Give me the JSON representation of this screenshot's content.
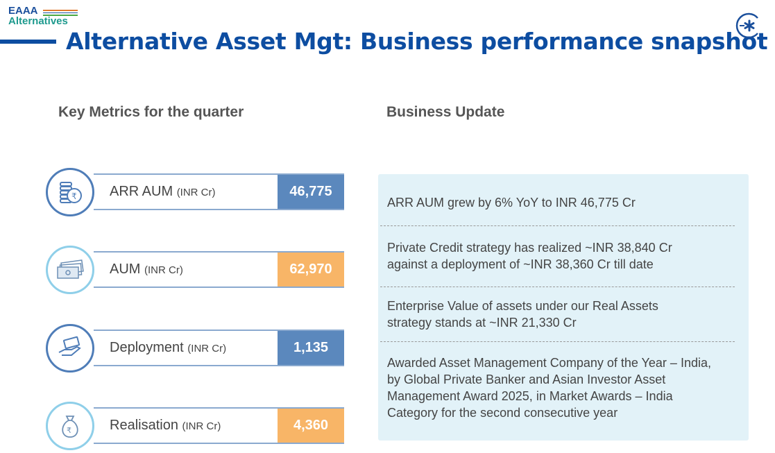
{
  "logo": {
    "line1": "EAAA",
    "line2": "Alternatives"
  },
  "title": "Alternative Asset Mgt: Business performance snapshot",
  "colors": {
    "blue": "#5b88bd",
    "orange": "#f8b567",
    "title": "#0d4da1"
  },
  "left_heading": "Key Metrics for the quarter",
  "right_heading": "Business Update",
  "metrics": [
    {
      "label": "ARR AUM",
      "unit": "(INR Cr)",
      "value": "46,775",
      "icon": "coins-rupee-icon"
    },
    {
      "label": "AUM",
      "unit": "(INR Cr)",
      "value": "62,970",
      "icon": "banknotes-icon"
    },
    {
      "label": "Deployment",
      "unit": "(INR Cr)",
      "value": "1,135",
      "icon": "hand-money-icon"
    },
    {
      "label": "Realisation",
      "unit": "(INR Cr)",
      "value": "4,360",
      "icon": "money-bag-icon"
    }
  ],
  "updates": [
    "ARR AUM grew by 6% YoY to INR 46,775 Cr",
    "Private Credit strategy has realized ~INR 38,840 Cr against a deployment of ~INR 38,360 Cr till date",
    "Enterprise Value of assets under our Real Assets strategy stands at ~INR 21,330 Cr",
    "Awarded Asset Management Company of the Year – India, by Global Private Banker and Asian Investor Asset Management Award 2025, in Market Awards – India Category for the second consecutive year"
  ]
}
